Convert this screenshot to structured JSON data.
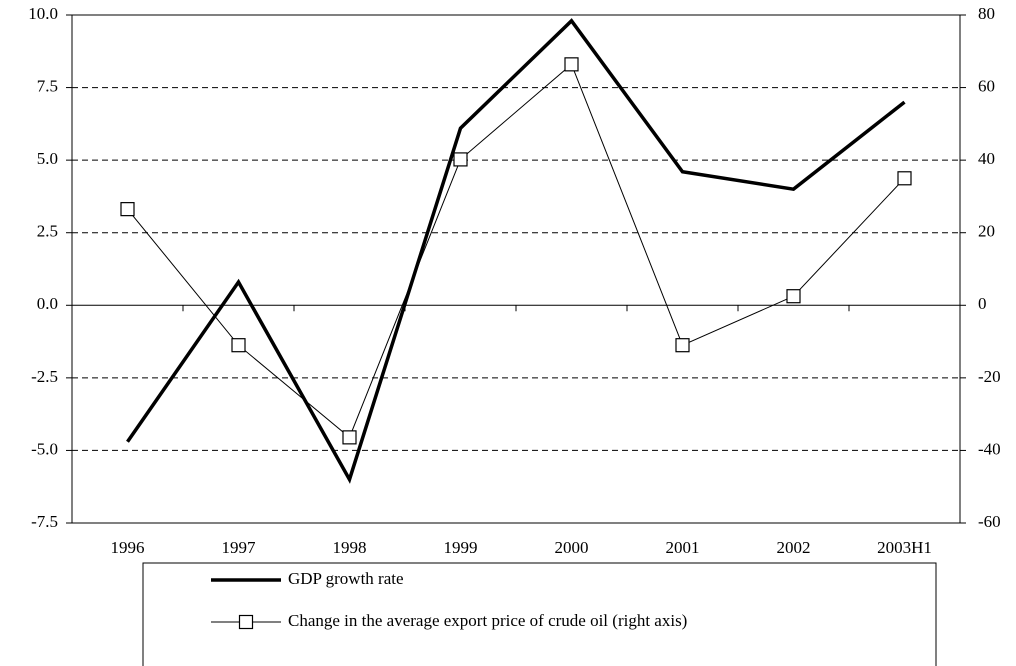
{
  "chart_data": {
    "type": "line",
    "categories": [
      "1996",
      "1997",
      "1998",
      "1999",
      "2000",
      "2001",
      "2002",
      "2003H1"
    ],
    "series": [
      {
        "name": "GDP growth rate",
        "color": "#000000",
        "values": [
          -4.7,
          0.8,
          -6.0,
          6.1,
          9.8,
          4.6,
          4.0,
          7.0
        ]
      },
      {
        "name": "Change in the average export price of crude oil (right axis)",
        "color": "#000000",
        "marker": "square",
        "axis": "y2",
        "values": [
          26.5,
          -11,
          -36.4,
          40.2,
          66.4,
          -11,
          2.5,
          35
        ]
      }
    ],
    "ylim": [
      -7.5,
      10
    ],
    "yticks": [
      -7.5,
      {
        "value": -5,
        "label": "-5.0"
      },
      -2.5,
      {
        "value": 0,
        "label": "0.0"
      },
      2.5,
      {
        "value": 5,
        "label": "5.0"
      },
      7.5,
      {
        "value": 10,
        "label": "10.0"
      }
    ],
    "y2lim": [
      -60,
      80
    ],
    "y2ticks": [
      -60,
      -40,
      -20,
      0,
      20,
      40,
      60,
      80
    ],
    "grid": true,
    "legend_position": "bottom"
  }
}
